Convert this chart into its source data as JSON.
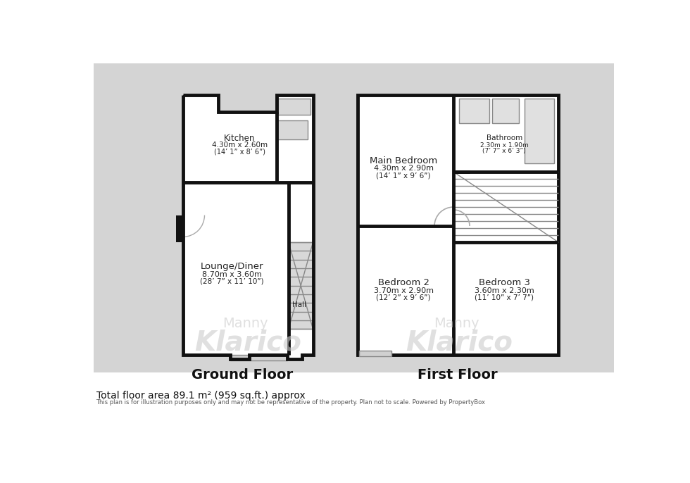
{
  "footer_line1": "Total floor area 89.1 m² (959 sq.ft.) approx",
  "footer_line2": "This plan is for illustration purposes only and may not be representative of the property. Plan not to scale. Powered by PropertyBox",
  "bg_gray": "#d4d4d4",
  "room_fill": "#e8e8e8",
  "wall_color": "#111111",
  "stair_color": "#888888",
  "title_ground": "Ground Floor",
  "title_first": "First Floor",
  "rooms": {
    "kitchen_label": "Kitchen",
    "kitchen_d1": "4.30m x 2.60m",
    "kitchen_d2": "(14’ 1” x 8’ 6”)",
    "lounge_label": "Lounge/Diner",
    "lounge_d1": "8.70m x 3.60m",
    "lounge_d2": "(28’ 7” x 11’ 10”)",
    "hall_label": "Hall",
    "mb_label": "Main Bedroom",
    "mb_d1": "4.30m x 2.90m",
    "mb_d2": "(14’ 1” x 9’ 6”)",
    "bath_label": "Bathroom",
    "bath_d1": "2.30m x 1.90m",
    "bath_d2": "(7’ 7” x 6’ 3”)",
    "bed2_label": "Bedroom 2",
    "bed2_d1": "3.70m x 2.90m",
    "bed2_d2": "(12’ 2” x 9’ 6”)",
    "bed3_label": "Bedroom 3",
    "bed3_d1": "3.60m x 2.30m",
    "bed3_d2": "(11’ 10” x 7’ 7”)"
  }
}
